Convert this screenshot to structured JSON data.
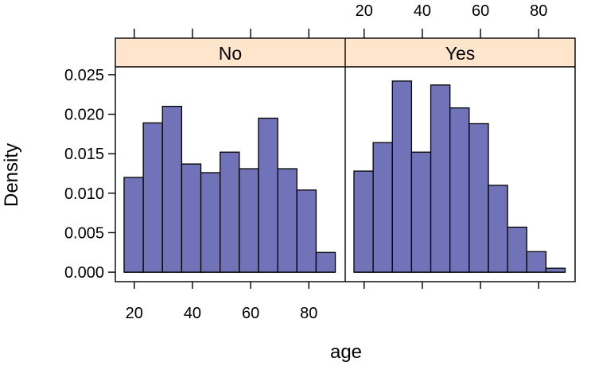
{
  "chart_data": {
    "type": "bar",
    "subtype": "histogram-trellis",
    "xlabel": "age",
    "ylabel": "Density",
    "xlim": [
      13.5,
      92.5
    ],
    "ylim": [
      -0.0012,
      0.026
    ],
    "x_ticks": [
      20,
      40,
      60,
      80
    ],
    "y_ticks": [
      0.0,
      0.005,
      0.01,
      0.015,
      0.02,
      0.025
    ],
    "y_tick_labels": [
      "0.000",
      "0.005",
      "0.010",
      "0.015",
      "0.020",
      "0.025"
    ],
    "bin_edges": [
      16.5,
      23.1,
      29.7,
      36.3,
      42.9,
      49.5,
      56.1,
      62.7,
      69.3,
      75.9,
      82.5,
      89.1
    ],
    "bar_fill": "#7073b8",
    "strip_fill": "#ffe5cc",
    "panels": [
      {
        "label": "No",
        "values": [
          0.012,
          0.0189,
          0.021,
          0.0137,
          0.0126,
          0.0152,
          0.0131,
          0.0195,
          0.0131,
          0.0104,
          0.0025
        ]
      },
      {
        "label": "Yes",
        "values": [
          0.0128,
          0.0164,
          0.0242,
          0.0152,
          0.0237,
          0.0208,
          0.0188,
          0.011,
          0.0057,
          0.0026,
          0.0005
        ]
      }
    ]
  }
}
